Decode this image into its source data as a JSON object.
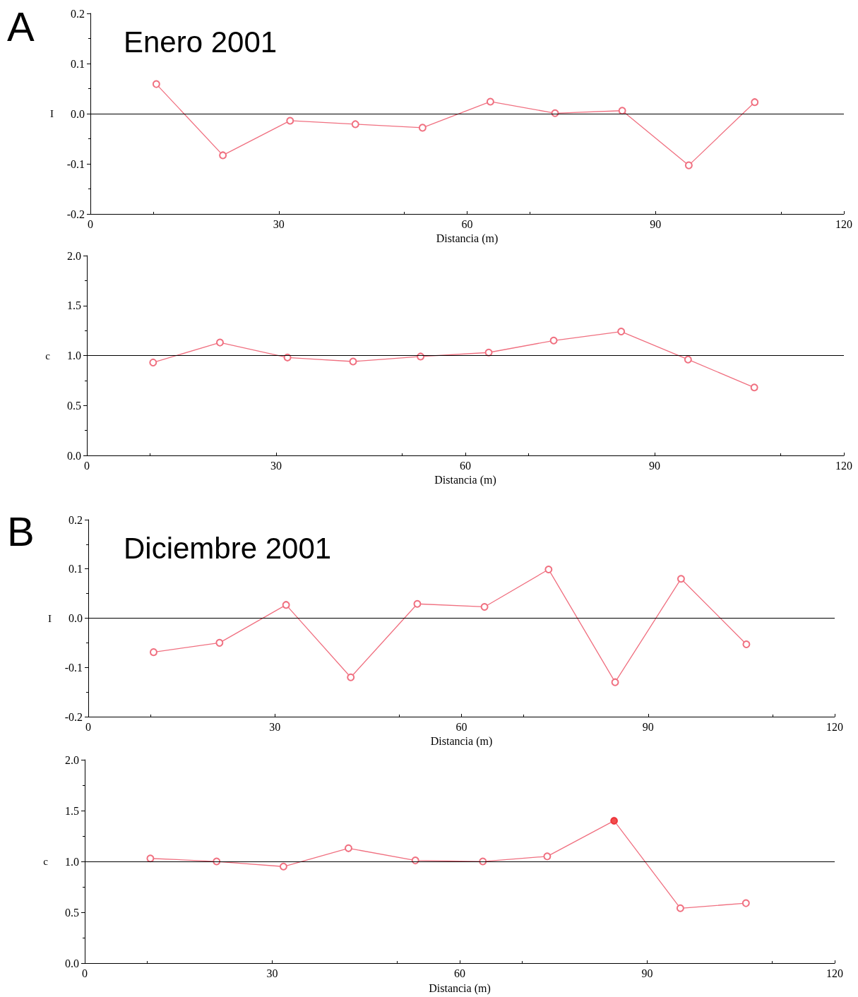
{
  "chart_data": [
    {
      "type": "line",
      "title": "Enero 2001",
      "annotations": [
        "A"
      ],
      "xlabel": "Distancia (m)",
      "ylabel": "I",
      "marker": "circle",
      "series": [
        {
          "color": "#f07080",
          "x": [
            10.5,
            21.1,
            31.8,
            42.2,
            52.9,
            63.7,
            74.0,
            84.7,
            95.3,
            105.8
          ],
          "values": [
            0.059,
            -0.083,
            -0.014,
            -0.021,
            -0.028,
            0.024,
            0.001,
            0.006,
            -0.103,
            0.023
          ]
        }
      ],
      "xlim": [
        0,
        120
      ],
      "xticks": [
        0,
        30,
        60,
        90,
        120
      ],
      "ylim": [
        -0.2,
        0.2
      ],
      "yticks": [
        {
          "value": -0.2,
          "label": "-0.2"
        },
        {
          "value": -0.1,
          "label": "-0.1"
        },
        {
          "value": 0,
          "label": "0.0"
        },
        {
          "value": 0.1,
          "label": "0.1"
        },
        {
          "value": 0.2,
          "label": "0.2"
        }
      ],
      "ref_lines": [
        {
          "axis": "y",
          "value": 0,
          "color": "#000000"
        }
      ]
    },
    {
      "type": "line",
      "xlabel": "Distancia (m)",
      "ylabel": "c",
      "marker": "circle",
      "series": [
        {
          "color": "#f07080",
          "x": [
            10.5,
            21.1,
            31.8,
            42.2,
            52.9,
            63.7,
            74.0,
            84.7,
            95.3,
            105.8
          ],
          "values": [
            0.93,
            1.13,
            0.98,
            0.94,
            0.99,
            1.03,
            1.15,
            1.24,
            0.96,
            0.68
          ]
        }
      ],
      "xlim": [
        0,
        120
      ],
      "xticks": [
        0,
        30,
        60,
        90,
        120
      ],
      "ylim": [
        0,
        2
      ],
      "yticks": [
        {
          "value": 0,
          "label": "0.0"
        },
        {
          "value": 0.5,
          "label": "0.5"
        },
        {
          "value": 1,
          "label": "1.0"
        },
        {
          "value": 1.5,
          "label": "1.5"
        },
        {
          "value": 2,
          "label": "2.0"
        }
      ],
      "ref_lines": [
        {
          "axis": "y",
          "value": 1,
          "color": "#000000"
        }
      ]
    },
    {
      "type": "line",
      "title": "Diciembre 2001",
      "annotations": [
        "B"
      ],
      "xlabel": "Distancia (m)",
      "ylabel": "I",
      "marker": "circle",
      "series": [
        {
          "color": "#f07080",
          "x": [
            10.5,
            21.1,
            31.8,
            42.2,
            52.9,
            63.7,
            74.0,
            84.7,
            95.3,
            105.8
          ],
          "values": [
            -0.069,
            -0.05,
            0.027,
            -0.12,
            0.029,
            0.023,
            0.099,
            -0.13,
            0.08,
            -0.053
          ]
        }
      ],
      "xlim": [
        0,
        120
      ],
      "xticks": [
        0,
        30,
        60,
        90,
        120
      ],
      "ylim": [
        -0.2,
        0.2
      ],
      "yticks": [
        {
          "value": -0.2,
          "label": "-0.2"
        },
        {
          "value": -0.1,
          "label": "-0.1"
        },
        {
          "value": 0,
          "label": "0.0"
        },
        {
          "value": 0.1,
          "label": "0.1"
        },
        {
          "value": 0.2,
          "label": "0.2"
        }
      ],
      "ref_lines": [
        {
          "axis": "y",
          "value": 0,
          "color": "#000000"
        }
      ]
    },
    {
      "type": "line",
      "xlabel": "Distancia (m)",
      "ylabel": "c",
      "marker": "circle",
      "series": [
        {
          "color": "#f07080",
          "x": [
            10.5,
            21.1,
            31.8,
            42.2,
            52.9,
            63.7,
            74.0,
            84.7,
            95.3,
            105.8
          ],
          "values": [
            1.03,
            1.0,
            0.95,
            1.13,
            1.01,
            1.0,
            1.05,
            1.4,
            0.54,
            0.59
          ]
        },
        {
          "type": "scatter",
          "color": "#ee2020",
          "x": [
            84.7
          ],
          "values": [
            1.4
          ]
        }
      ],
      "xlim": [
        0,
        120
      ],
      "xticks": [
        0,
        30,
        60,
        90,
        120
      ],
      "ylim": [
        0,
        2
      ],
      "yticks": [
        {
          "value": 0,
          "label": "0.0"
        },
        {
          "value": 0.5,
          "label": "0.5"
        },
        {
          "value": 1,
          "label": "1.0"
        },
        {
          "value": 1.5,
          "label": "1.5"
        },
        {
          "value": 2,
          "label": "2.0"
        }
      ],
      "ref_lines": [
        {
          "axis": "y",
          "value": 1,
          "color": "#000000"
        }
      ]
    }
  ]
}
